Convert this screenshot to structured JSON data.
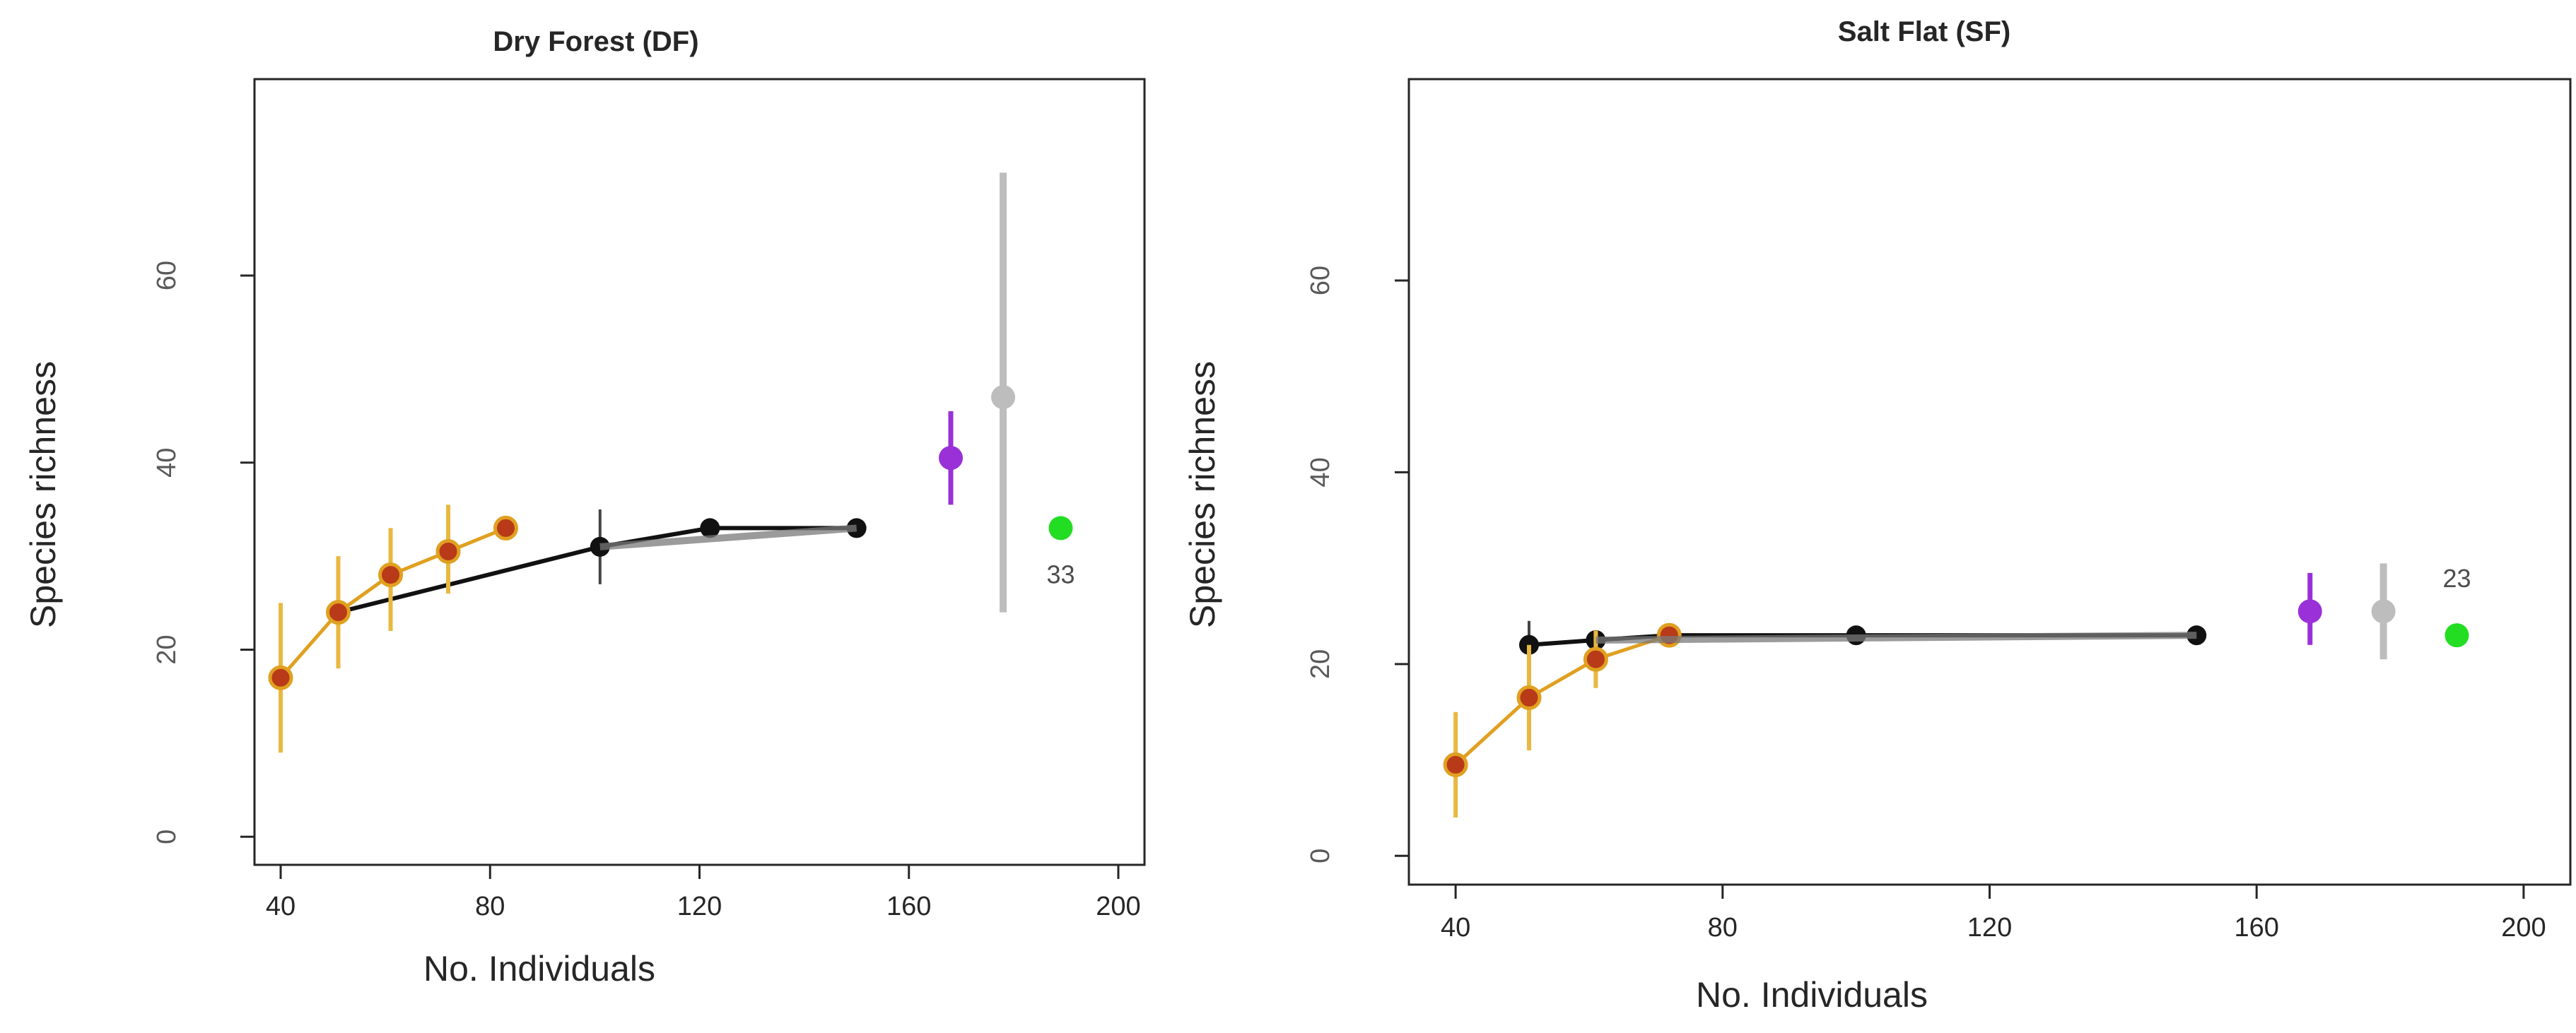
{
  "chart_data": [
    {
      "type": "scatter",
      "title": "Dry Forest (DF)",
      "xlabel": "No. Individuals",
      "ylabel": "Species richness",
      "xlim": [
        35,
        205
      ],
      "ylim": [
        -3,
        81
      ],
      "xticks": [
        "40",
        "80",
        "120",
        "160",
        "200"
      ],
      "yticks": [
        "0",
        "20",
        "40",
        "60"
      ],
      "grid": false,
      "series": [
        {
          "color": "#e0a020",
          "points": [
            {
              "x": 40,
              "y": 17,
              "lo": 9,
              "hi": 25
            },
            {
              "x": 51,
              "y": 24,
              "lo": 18,
              "hi": 30
            },
            {
              "x": 61,
              "y": 28,
              "lo": 22,
              "hi": 33
            },
            {
              "x": 72,
              "y": 30.5,
              "lo": 26,
              "hi": 35.5
            },
            {
              "x": 83,
              "y": 33,
              "lo": 32,
              "hi": 34
            }
          ]
        },
        {
          "color": "#111111",
          "points": [
            {
              "x": 51,
              "y": 24,
              "lo": 23,
              "hi": 25
            },
            {
              "x": 101,
              "y": 31,
              "lo": 27,
              "hi": 35
            },
            {
              "x": 122,
              "y": 33,
              "lo": 32.5,
              "hi": 33.5
            },
            {
              "x": 150,
              "y": 33,
              "lo": 32.5,
              "hi": 33.5
            }
          ]
        }
      ],
      "estimators": [
        {
          "x": 168,
          "y": 40.5,
          "lo": 35.5,
          "hi": 45.5,
          "color": "#9a30d8"
        },
        {
          "x": 178,
          "y": 47,
          "lo": 24,
          "hi": 71,
          "color": "#bdbdbd"
        },
        {
          "x": 189,
          "y": 33,
          "color": "#22dd22"
        }
      ],
      "annotation": "33"
    },
    {
      "type": "scatter",
      "title": "Salt Flat (SF)",
      "xlabel": "No. Individuals",
      "ylabel": "Species richness",
      "xlim": [
        33,
        207
      ],
      "ylim": [
        -3,
        81
      ],
      "xticks": [
        "40",
        "80",
        "120",
        "160",
        "200"
      ],
      "yticks": [
        "0",
        "20",
        "40",
        "60"
      ],
      "grid": false,
      "series": [
        {
          "color": "#e0a020",
          "points": [
            {
              "x": 40,
              "y": 9.5,
              "lo": 4,
              "hi": 15
            },
            {
              "x": 51,
              "y": 16.5,
              "lo": 11,
              "hi": 22
            },
            {
              "x": 61,
              "y": 20.5,
              "lo": 17.5,
              "hi": 23.5
            },
            {
              "x": 72,
              "y": 23,
              "lo": 22.5,
              "hi": 23.5
            }
          ]
        },
        {
          "color": "#111111",
          "points": [
            {
              "x": 51,
              "y": 22,
              "lo": 19.5,
              "hi": 24.5
            },
            {
              "x": 61,
              "y": 22.5,
              "lo": 21.5,
              "hi": 23.5
            },
            {
              "x": 72,
              "y": 23,
              "lo": 22.5,
              "hi": 23.5
            },
            {
              "x": 100,
              "y": 23,
              "lo": 22.5,
              "hi": 23.5
            },
            {
              "x": 151,
              "y": 23,
              "lo": 22.5,
              "hi": 23.5
            }
          ]
        }
      ],
      "estimators": [
        {
          "x": 168,
          "y": 25.5,
          "lo": 22,
          "hi": 29.5,
          "color": "#9a30d8"
        },
        {
          "x": 179,
          "y": 25.5,
          "lo": 20.5,
          "hi": 30.5,
          "color": "#bdbdbd"
        },
        {
          "x": 190,
          "y": 23,
          "color": "#22dd22"
        }
      ],
      "annotation": "23"
    }
  ]
}
